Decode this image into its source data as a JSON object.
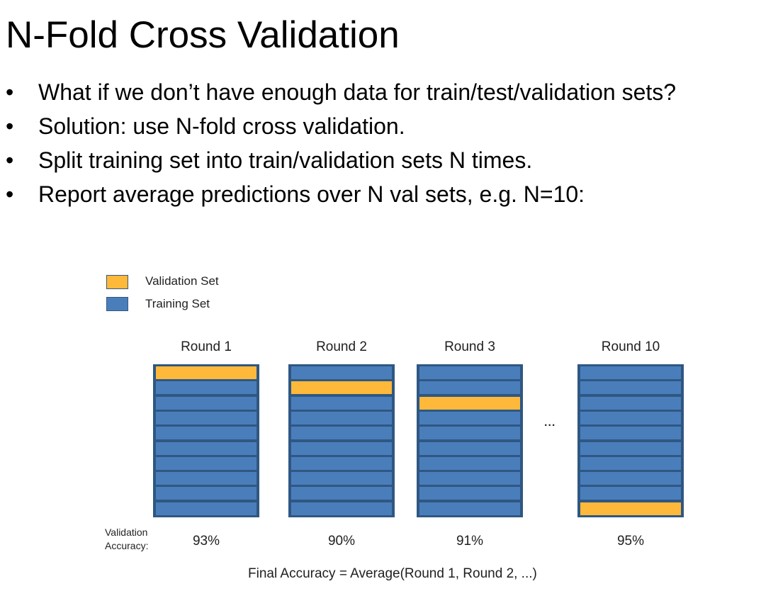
{
  "slide": {
    "title": "N-Fold Cross Validation",
    "bullets": [
      "What if we don’t have enough data for train/test/validation sets?",
      "Solution: use N-fold cross validation.",
      "Split training set into train/validation sets N times.",
      "Report average predictions over N val sets, e.g. N=10:"
    ],
    "bullet_glyph": "•"
  },
  "legend": {
    "validation_label": "Validation Set",
    "training_label": "Training Set"
  },
  "colors": {
    "validation": "#ffb93a",
    "training": "#4a7ebb",
    "border": "#2f5782"
  },
  "diagram": {
    "folds_per_round": 10,
    "rounds": [
      {
        "label": "Round 1",
        "validation_fold": 1,
        "accuracy": "93%"
      },
      {
        "label": "Round 2",
        "validation_fold": 2,
        "accuracy": "90%"
      },
      {
        "label": "Round 3",
        "validation_fold": 3,
        "accuracy": "91%"
      },
      {
        "label": "Round 10",
        "validation_fold": 10,
        "accuracy": "95%"
      }
    ],
    "ellipsis": "...",
    "accuracy_caption_line1": "Validation",
    "accuracy_caption_line2": "Accuracy:",
    "final_accuracy": "Final Accuracy  =  Average(Round 1, Round 2, ...)"
  }
}
